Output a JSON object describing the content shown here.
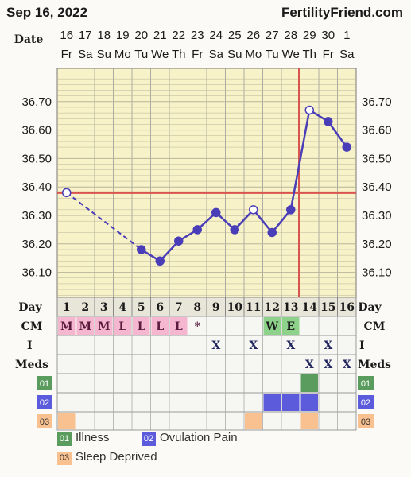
{
  "header": {
    "date": "Sep 16, 2022",
    "site": "FertilityFriend.com"
  },
  "labels": {
    "date": "Date",
    "day": "Day",
    "cm": "CM",
    "i": "I",
    "meds": "Meds",
    "med_codes": [
      "01",
      "02",
      "03"
    ]
  },
  "chart_data": {
    "type": "line",
    "dates": [
      "16",
      "17",
      "18",
      "19",
      "20",
      "21",
      "22",
      "23",
      "24",
      "25",
      "26",
      "27",
      "28",
      "29",
      "30",
      "1"
    ],
    "weekdays": [
      "Fr",
      "Sa",
      "Su",
      "Mo",
      "Tu",
      "We",
      "Th",
      "Fr",
      "Sa",
      "Su",
      "Mo",
      "Tu",
      "We",
      "Th",
      "Fr",
      "Sa"
    ],
    "cycle_days": [
      "1",
      "2",
      "3",
      "4",
      "5",
      "6",
      "7",
      "8",
      "9",
      "10",
      "11",
      "12",
      "13",
      "14",
      "15",
      "16"
    ],
    "y_ticks": [
      "36.70",
      "36.60",
      "36.50",
      "36.40",
      "36.30",
      "36.20",
      "36.10"
    ],
    "ylim": [
      36.0,
      36.8
    ],
    "temperatures": [
      36.38,
      null,
      null,
      null,
      36.18,
      36.14,
      36.21,
      36.25,
      36.31,
      36.25,
      36.32,
      36.24,
      36.32,
      36.67,
      36.63,
      36.54
    ],
    "open_points": [
      1,
      11,
      14
    ],
    "dashed_segment": [
      1,
      5
    ],
    "coverline": 36.38,
    "ovulation_day": 13,
    "grid": true,
    "colors": {
      "line": "#4a3db8",
      "coverline": "#d9534f",
      "plot_bg": "#f7f2c7",
      "grid": "#9a9a9a"
    }
  },
  "cm_row": [
    "M",
    "M",
    "M",
    "L",
    "L",
    "L",
    "L",
    "*",
    "",
    "",
    "",
    "W",
    "E",
    "",
    "",
    ""
  ],
  "cm_colors": {
    "M": "#f5b6cf",
    "L": "#f5b6cf",
    "W": "#8ed18b",
    "E": "#8ed18b"
  },
  "i_row": [
    "",
    "",
    "",
    "",
    "",
    "",
    "",
    "",
    "X",
    "",
    "X",
    "",
    "X",
    "",
    "X",
    ""
  ],
  "meds_row": [
    "",
    "",
    "",
    "",
    "",
    "",
    "",
    "",
    "",
    "",
    "",
    "",
    "",
    "X",
    "X",
    "X"
  ],
  "med_rows": [
    {
      "code": "01",
      "color": "#5a9c5e",
      "days": [
        14
      ]
    },
    {
      "code": "02",
      "color": "#5b5bdb",
      "days": [
        12,
        13,
        14
      ]
    },
    {
      "code": "03",
      "color": "#f8c18f",
      "days": [
        1,
        11,
        14
      ]
    }
  ],
  "legend": [
    {
      "code": "01",
      "label": "Illness",
      "color": "#5a9c5e"
    },
    {
      "code": "02",
      "label": "Ovulation Pain",
      "color": "#5b5bdb"
    },
    {
      "code": "03",
      "label": "Sleep Deprived",
      "color": "#f8c18f"
    }
  ]
}
